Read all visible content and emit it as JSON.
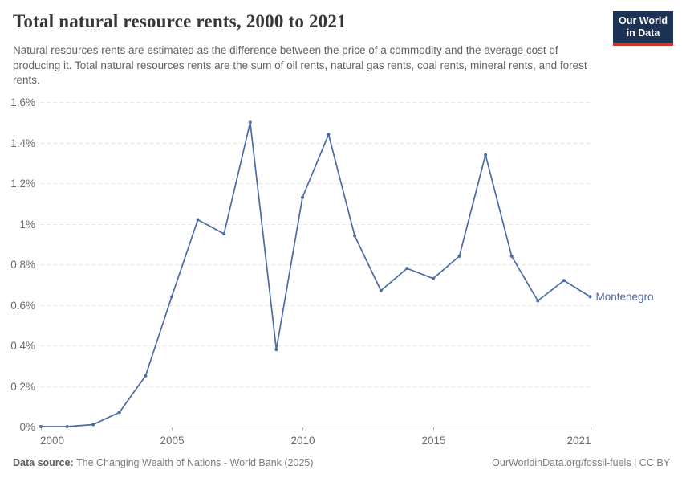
{
  "header": {
    "title": "Total natural resource rents, 2000 to 2021",
    "subtitle": "Natural resources rents are estimated as the difference between the price of a commodity and the average cost of producing it. Total natural resources rents are the sum of oil rents, natural gas rents, coal rents, mineral rents, and forest rents.",
    "logo_line1": "Our World",
    "logo_line2": "in Data"
  },
  "footer": {
    "source_label": "Data source:",
    "source_text": " The Changing Wealth of Nations - World Bank (2025)",
    "url": "OurWorldinData.org/fossil-fuels",
    "divider": " | ",
    "license": "CC BY"
  },
  "colors": {
    "line": "#4C6AA3",
    "entity_label": "#4C6AA3",
    "gridline": "#E2E2E2",
    "axis": "#A9A9A9",
    "axis_text": "#6C6C6C",
    "logo_bg": "#1D3356",
    "logo_bar": "#C5392C"
  },
  "chart_data": {
    "type": "line",
    "title": "Total natural resource rents, 2000 to 2021",
    "xlabel": "",
    "ylabel": "",
    "unit": "%",
    "xlim": [
      2000,
      2021
    ],
    "ylim": [
      0,
      1.6
    ],
    "grid": "horizontal-dashed",
    "legend_position": "end-of-line-label",
    "x_ticks": [
      2000,
      2005,
      2010,
      2015,
      2021
    ],
    "y_ticks": [
      {
        "value": 0,
        "label": "0%"
      },
      {
        "value": 0.2,
        "label": "0.2%"
      },
      {
        "value": 0.4,
        "label": "0.4%"
      },
      {
        "value": 0.6,
        "label": "0.6%"
      },
      {
        "value": 0.8,
        "label": "0.8%"
      },
      {
        "value": 1,
        "label": "1%"
      },
      {
        "value": 1.2,
        "label": "1.2%"
      },
      {
        "value": 1.4,
        "label": "1.4%"
      },
      {
        "value": 1.6,
        "label": "1.6%"
      }
    ],
    "series": [
      {
        "name": "Montenegro",
        "color": "#4C6AA3",
        "x": [
          2000,
          2001,
          2002,
          2003,
          2004,
          2005,
          2006,
          2007,
          2008,
          2009,
          2010,
          2011,
          2012,
          2013,
          2014,
          2015,
          2016,
          2017,
          2018,
          2019,
          2020,
          2021
        ],
        "values": [
          0,
          0,
          0.01,
          0.07,
          0.25,
          0.64,
          1.02,
          0.95,
          1.5,
          0.38,
          1.13,
          1.44,
          0.94,
          0.67,
          0.78,
          0.73,
          0.84,
          1.34,
          0.84,
          0.62,
          0.72,
          0.64
        ]
      }
    ]
  }
}
